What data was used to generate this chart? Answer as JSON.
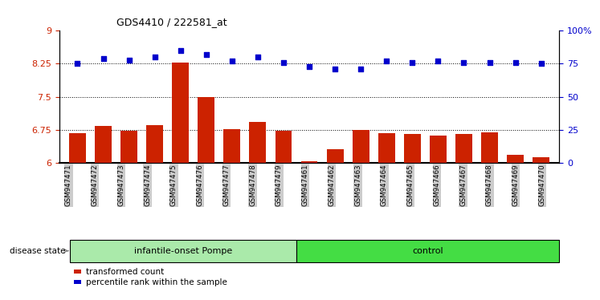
{
  "title": "GDS4410 / 222581_at",
  "samples": [
    "GSM947471",
    "GSM947472",
    "GSM947473",
    "GSM947474",
    "GSM947475",
    "GSM947476",
    "GSM947477",
    "GSM947478",
    "GSM947479",
    "GSM947461",
    "GSM947462",
    "GSM947463",
    "GSM947464",
    "GSM947465",
    "GSM947466",
    "GSM947467",
    "GSM947468",
    "GSM947469",
    "GSM947470"
  ],
  "bar_values": [
    6.67,
    6.83,
    6.73,
    6.85,
    8.28,
    7.5,
    6.76,
    6.93,
    6.72,
    6.04,
    6.31,
    6.74,
    6.67,
    6.65,
    6.62,
    6.65,
    6.7,
    6.18,
    6.13
  ],
  "dot_values": [
    75,
    79,
    78,
    80,
    85,
    82,
    77,
    80,
    76,
    73,
    71,
    71,
    77,
    76,
    77,
    76,
    76,
    76,
    75
  ],
  "group1_label": "infantile-onset Pompe",
  "group2_label": "control",
  "group1_count": 9,
  "group2_count": 10,
  "ylim_left": [
    6,
    9
  ],
  "ylim_right": [
    0,
    100
  ],
  "yticks_left": [
    6,
    6.75,
    7.5,
    8.25,
    9
  ],
  "yticks_right": [
    0,
    25,
    50,
    75,
    100
  ],
  "ytick_labels_left": [
    "6",
    "6.75",
    "7.5",
    "8.25",
    "9"
  ],
  "ytick_labels_right": [
    "0",
    "25",
    "50",
    "75",
    "100%"
  ],
  "hlines": [
    6.75,
    7.5,
    8.25
  ],
  "bar_color": "#cc2200",
  "dot_color": "#0000cc",
  "group1_color": "#aaeaaa",
  "group2_color": "#44dd44",
  "tick_bg_color": "#cccccc",
  "legend_bar_label": "transformed count",
  "legend_dot_label": "percentile rank within the sample",
  "disease_state_label": "disease state"
}
